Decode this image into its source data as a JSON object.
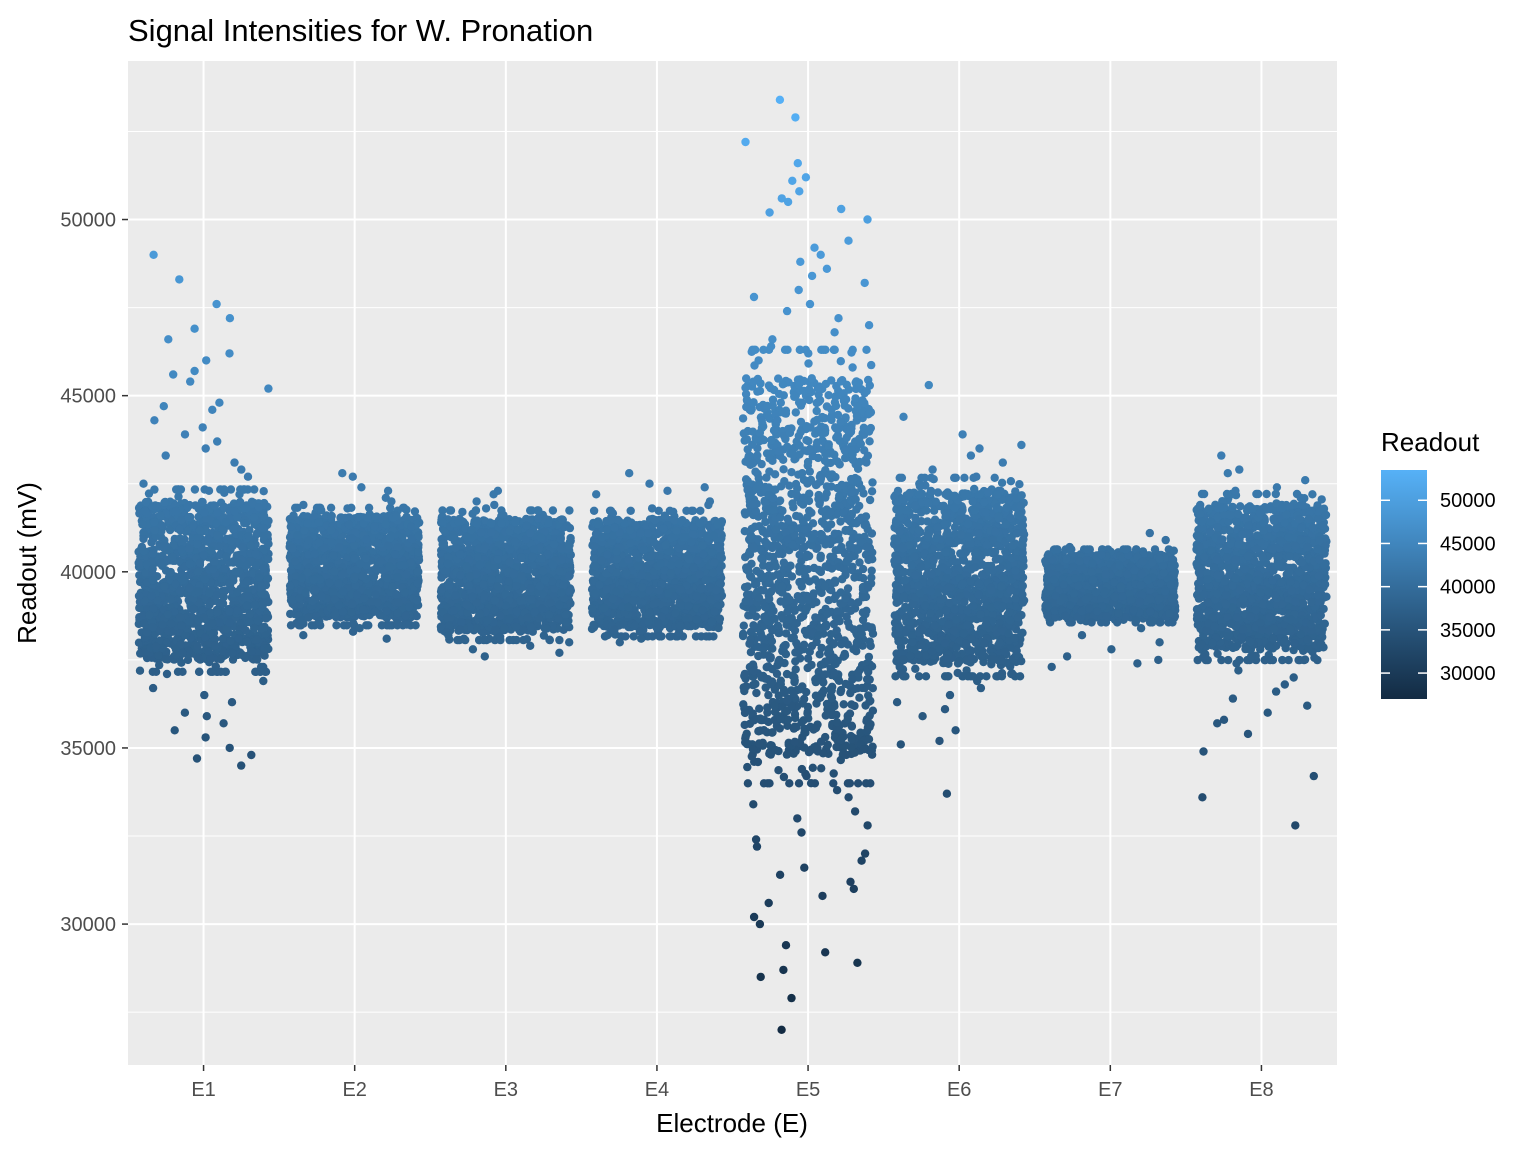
{
  "chart_data": {
    "type": "scatter",
    "title": "Signal Intensities for W. Pronation",
    "xlabel": "Electrode (E)",
    "ylabel": "Readout (mV)",
    "categories": [
      "E1",
      "E2",
      "E3",
      "E4",
      "E5",
      "E6",
      "E7",
      "E8"
    ],
    "ylim": [
      26000,
      54500
    ],
    "yticks": [
      30000,
      35000,
      40000,
      45000,
      50000
    ],
    "ytick_labels": [
      "30000",
      "35000",
      "40000",
      "45000",
      "50000"
    ],
    "grid": true,
    "legend": {
      "title": "Readout",
      "position": "right",
      "type": "colorbar",
      "range": [
        27000,
        53500
      ],
      "ticks": [
        30000,
        35000,
        40000,
        45000,
        50000
      ],
      "tick_labels": [
        "30000",
        "35000",
        "40000",
        "45000",
        "50000"
      ],
      "color_low": "#132B43",
      "color_high": "#56B1F7"
    },
    "series": [
      {
        "category": "E1",
        "core_low": 37500,
        "core_high": 42000,
        "min": 34500,
        "max": 49000,
        "outliers": [
          49000,
          48300,
          47600,
          47200,
          46900,
          46600,
          46200,
          46000,
          45700,
          45600,
          45400,
          45200,
          44800,
          44700,
          44600,
          44300,
          44100,
          43900,
          43700,
          43500,
          43300,
          43100,
          42900,
          42700,
          42500,
          42300,
          37300,
          37100,
          36900,
          36700,
          36500,
          36300,
          36000,
          35900,
          35700,
          35500,
          35300,
          35000,
          34800,
          34700,
          34500
        ]
      },
      {
        "category": "E2",
        "core_low": 38700,
        "core_high": 41600,
        "min": 38100,
        "max": 42800,
        "outliers": [
          42800,
          42700,
          42400,
          42300,
          42100,
          42000,
          41900,
          41800,
          38600,
          38500,
          38400,
          38300,
          38200,
          38100
        ]
      },
      {
        "category": "E3",
        "core_low": 38300,
        "core_high": 41500,
        "min": 37600,
        "max": 42300,
        "outliers": [
          42300,
          42200,
          42000,
          41900,
          41800,
          41700,
          38200,
          38100,
          38000,
          37900,
          37800,
          37700,
          37600
        ]
      },
      {
        "category": "E4",
        "core_low": 38400,
        "core_high": 41500,
        "min": 38000,
        "max": 42800,
        "outliers": [
          42800,
          42500,
          42400,
          42300,
          42200,
          42000,
          41900,
          41800,
          38300,
          38200,
          38100,
          38000
        ]
      },
      {
        "category": "E5",
        "core_low": 34800,
        "core_high": 45500,
        "min": 27000,
        "max": 53400,
        "outliers": [
          53400,
          52900,
          52200,
          51600,
          51200,
          51100,
          50800,
          50600,
          50500,
          50300,
          50200,
          50000,
          49400,
          49200,
          49000,
          48800,
          48600,
          48400,
          48200,
          48000,
          47800,
          47600,
          47400,
          47200,
          47000,
          46800,
          46600,
          46400,
          46200,
          46000,
          45800,
          34600,
          34400,
          34200,
          34000,
          33800,
          33600,
          33400,
          33200,
          33000,
          32800,
          32600,
          32400,
          32200,
          32000,
          31800,
          31600,
          31400,
          31200,
          31000,
          30800,
          30600,
          30200,
          30000,
          29400,
          29200,
          28900,
          28700,
          28500,
          27900,
          27000
        ]
      },
      {
        "category": "E6",
        "core_low": 37400,
        "core_high": 42300,
        "min": 33700,
        "max": 45300,
        "outliers": [
          45300,
          44400,
          43900,
          43600,
          43500,
          43300,
          43100,
          42900,
          42700,
          42500,
          37300,
          37100,
          36900,
          36700,
          36500,
          36300,
          36100,
          35900,
          35500,
          35200,
          35100,
          33700
        ]
      },
      {
        "category": "E7",
        "core_low": 38700,
        "core_high": 40500,
        "min": 37300,
        "max": 41100,
        "outliers": [
          41100,
          40900,
          40700,
          40600,
          38600,
          38400,
          38200,
          38000,
          37800,
          37600,
          37500,
          37400,
          37300
        ]
      },
      {
        "category": "E8",
        "core_low": 37800,
        "core_high": 41900,
        "min": 32800,
        "max": 43300,
        "outliers": [
          43300,
          42900,
          42800,
          42600,
          42400,
          42300,
          42200,
          42100,
          37600,
          37400,
          37200,
          37000,
          36800,
          36600,
          36400,
          36200,
          36000,
          35800,
          35700,
          35400,
          34900,
          34200,
          33600,
          32800
        ]
      }
    ]
  }
}
